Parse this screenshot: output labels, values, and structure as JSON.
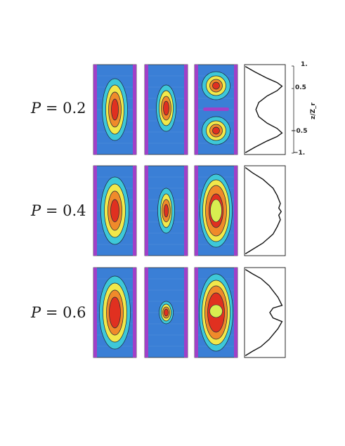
{
  "figure": {
    "rows": [
      {
        "label_var": "P",
        "label_rest": " = 0.2"
      },
      {
        "label_var": "P",
        "label_rest": " = 0.4"
      },
      {
        "label_var": "P",
        "label_rest": " = 0.6"
      }
    ],
    "axis": {
      "title": "z/Z_r",
      "ticks": [
        "1.",
        "0.5",
        "−0.5",
        "−1."
      ]
    },
    "colors": {
      "background": "#3a7fd6",
      "wall": "#a040c8",
      "level1": "#3ec8d8",
      "level2": "#f2e84a",
      "level3": "#f08a2a",
      "level4": "#e03020"
    }
  }
}
